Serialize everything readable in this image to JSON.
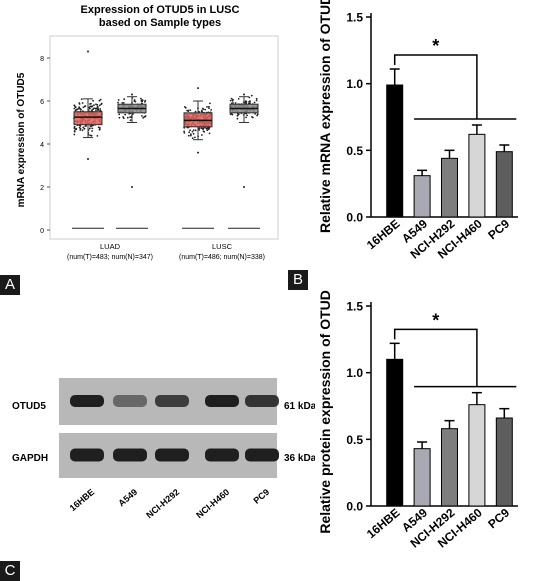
{
  "panels": {
    "a": "A",
    "b": "B",
    "c": "C"
  },
  "box_chart": {
    "type": "box",
    "title_line1": "Expression of OTUD5 in LUSC",
    "title_line2": "based on Sample types",
    "ylabel": "mRNA expression of OTUD5",
    "ylim": [
      0,
      9
    ],
    "yticks": [
      "0",
      "2",
      "4",
      "6",
      "8"
    ],
    "groups": [
      {
        "name": "LUAD",
        "subtitle": "(num(T)=483; num(N)=347)",
        "tumor": {
          "q1": 4.9,
          "median": 5.25,
          "q3": 5.5,
          "whisker_low": 4.3,
          "whisker_high": 6.1,
          "min": 3.3,
          "max": 8.3
        },
        "normal": {
          "q1": 5.45,
          "median": 5.65,
          "q3": 5.85,
          "whisker_low": 5.0,
          "whisker_high": 6.2,
          "min": 2.0,
          "max": 6.3
        }
      },
      {
        "name": "LUSC",
        "subtitle": "(num(T)=486; num(N)=338)",
        "tumor": {
          "q1": 4.8,
          "median": 5.1,
          "q3": 5.45,
          "whisker_low": 4.2,
          "whisker_high": 6.0,
          "min": 3.6,
          "max": 6.6
        },
        "normal": {
          "q1": 5.45,
          "median": 5.65,
          "q3": 5.85,
          "whisker_low": 5.0,
          "whisker_high": 6.2,
          "min": 2.0,
          "max": 6.3
        }
      }
    ],
    "colors": {
      "tumor": "#e0625b",
      "normal": "#8c8c8c"
    }
  },
  "chart_data": [
    {
      "type": "bar",
      "categories": [
        "16HBE",
        "A549",
        "NCI-H292",
        "NCI-H460",
        "PC9"
      ],
      "values": [
        0.99,
        0.31,
        0.44,
        0.62,
        0.49
      ],
      "errors": [
        0.12,
        0.04,
        0.06,
        0.07,
        0.05
      ],
      "ylabel": "Relative mRNA expression of OTUD5",
      "ylim": [
        0,
        1.5
      ],
      "yticks": [
        "0.0",
        "0.5",
        "1.0",
        "1.5"
      ],
      "significance": "*"
    },
    {
      "type": "bar",
      "categories": [
        "16HBE",
        "A549",
        "NCI-H292",
        "NCI-H460",
        "PC9"
      ],
      "values": [
        1.1,
        0.43,
        0.58,
        0.76,
        0.66
      ],
      "errors": [
        0.12,
        0.05,
        0.06,
        0.09,
        0.07
      ],
      "ylabel": "Relative protein expression of OTUD5",
      "ylim": [
        0,
        1.5
      ],
      "yticks": [
        "0.0",
        "0.5",
        "1.0",
        "1.5"
      ],
      "significance": "*"
    }
  ],
  "bar_colors": [
    "#000000",
    "#a9a9b4",
    "#7d7d7d",
    "#d6d6d6",
    "#5e5e5e"
  ],
  "blot": {
    "rows": [
      {
        "protein": "OTUD5",
        "size": "61 kDa",
        "intensities": [
          0.95,
          0.55,
          0.8,
          0.95,
          0.85
        ]
      },
      {
        "protein": "GAPDH",
        "size": "36 kDa",
        "intensities": [
          0.95,
          0.95,
          0.95,
          0.95,
          0.95
        ]
      }
    ],
    "lanes": [
      "16HBE",
      "A549",
      "NCI-H292",
      "NCI-H460",
      "PC9"
    ]
  }
}
